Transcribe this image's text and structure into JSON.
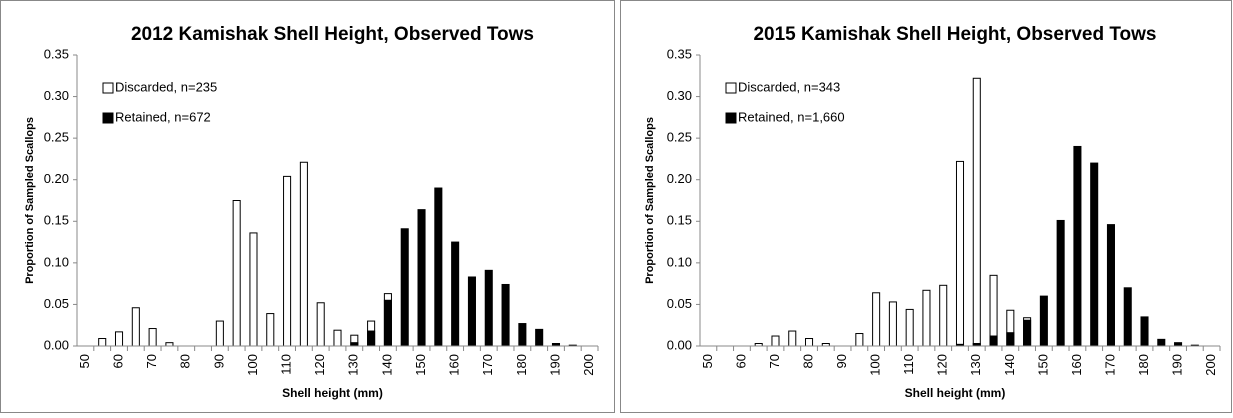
{
  "chart_data": [
    {
      "type": "bar",
      "title": "2012 Kamishak Shell Height, Observed Tows",
      "x_label": "Shell height (mm)",
      "y_label": "Proportion of Sampled Scallops",
      "x": [
        50,
        55,
        60,
        65,
        70,
        75,
        80,
        85,
        90,
        95,
        100,
        105,
        110,
        115,
        120,
        125,
        130,
        135,
        140,
        145,
        150,
        155,
        160,
        165,
        170,
        175,
        180,
        185,
        190,
        195,
        200
      ],
      "series": [
        {
          "name": "Discarded, n=235",
          "color": "#ffffff",
          "values": [
            0,
            0.009,
            0.017,
            0.046,
            0.021,
            0.004,
            0,
            0,
            0.03,
            0.175,
            0.136,
            0.039,
            0.204,
            0.221,
            0.052,
            0.019,
            0.013,
            0.03,
            0.063,
            0,
            0,
            0,
            0,
            0,
            0,
            0,
            0,
            0,
            0,
            0,
            0
          ]
        },
        {
          "name": "Retained, n=672",
          "color": "#000000",
          "values": [
            0,
            0,
            0,
            0,
            0,
            0,
            0,
            0,
            0,
            0,
            0,
            0,
            0,
            0,
            0,
            0,
            0.004,
            0.018,
            0.055,
            0.141,
            0.164,
            0.19,
            0.125,
            0.083,
            0.091,
            0.074,
            0.027,
            0.02,
            0.003,
            0.001,
            0
          ]
        }
      ],
      "xlim": [
        47.5,
        202.5
      ],
      "xticks": [
        50,
        60,
        70,
        80,
        90,
        100,
        110,
        120,
        130,
        140,
        150,
        160,
        170,
        180,
        190,
        200
      ],
      "ylim": [
        0,
        0.35
      ],
      "yticks": [
        {
          "value": 0,
          "label": "0.00"
        },
        {
          "value": 0.05,
          "label": "0.05"
        },
        {
          "value": 0.1,
          "label": "0.10"
        },
        {
          "value": 0.15,
          "label": "0.15"
        },
        {
          "value": 0.2,
          "label": "0.20"
        },
        {
          "value": 0.25,
          "label": "0.25"
        },
        {
          "value": 0.3,
          "label": "0.30"
        },
        {
          "value": 0.35,
          "label": "0.35"
        }
      ],
      "legend": "upper left"
    },
    {
      "type": "bar",
      "title": "2015 Kamishak Shell Height, Observed Tows",
      "x_label": "Shell height (mm)",
      "y_label": "Proportion of Sampled Scallops",
      "x": [
        50,
        55,
        60,
        65,
        70,
        75,
        80,
        85,
        90,
        95,
        100,
        105,
        110,
        115,
        120,
        125,
        130,
        135,
        140,
        145,
        150,
        155,
        160,
        165,
        170,
        175,
        180,
        185,
        190,
        195,
        200
      ],
      "series": [
        {
          "name": "Discarded, n=343",
          "color": "#ffffff",
          "values": [
            0,
            0,
            0,
            0.003,
            0.012,
            0.018,
            0.009,
            0.003,
            0,
            0.015,
            0.064,
            0.053,
            0.044,
            0.067,
            0.073,
            0.222,
            0.322,
            0.085,
            0.043,
            0.034,
            0,
            0,
            0,
            0,
            0,
            0,
            0,
            0,
            0,
            0,
            0
          ]
        },
        {
          "name": "Retained, n=1,660",
          "color": "#000000",
          "values": [
            0,
            0,
            0,
            0,
            0,
            0,
            0,
            0,
            0,
            0,
            0,
            0,
            0,
            0,
            0,
            0.002,
            0.003,
            0.012,
            0.016,
            0.031,
            0.06,
            0.151,
            0.24,
            0.22,
            0.146,
            0.07,
            0.035,
            0.008,
            0.004,
            0.001,
            0
          ]
        }
      ],
      "xlim": [
        47.5,
        202.5
      ],
      "xticks": [
        50,
        60,
        70,
        80,
        90,
        100,
        110,
        120,
        130,
        140,
        150,
        160,
        170,
        180,
        190,
        200
      ],
      "ylim": [
        0,
        0.35
      ],
      "yticks": [
        {
          "value": 0,
          "label": "0.00"
        },
        {
          "value": 0.05,
          "label": "0.05"
        },
        {
          "value": 0.1,
          "label": "0.10"
        },
        {
          "value": 0.15,
          "label": "0.15"
        },
        {
          "value": 0.2,
          "label": "0.20"
        },
        {
          "value": 0.25,
          "label": "0.25"
        },
        {
          "value": 0.3,
          "label": "0.30"
        },
        {
          "value": 0.35,
          "label": "0.35"
        }
      ],
      "legend": "upper left"
    }
  ]
}
